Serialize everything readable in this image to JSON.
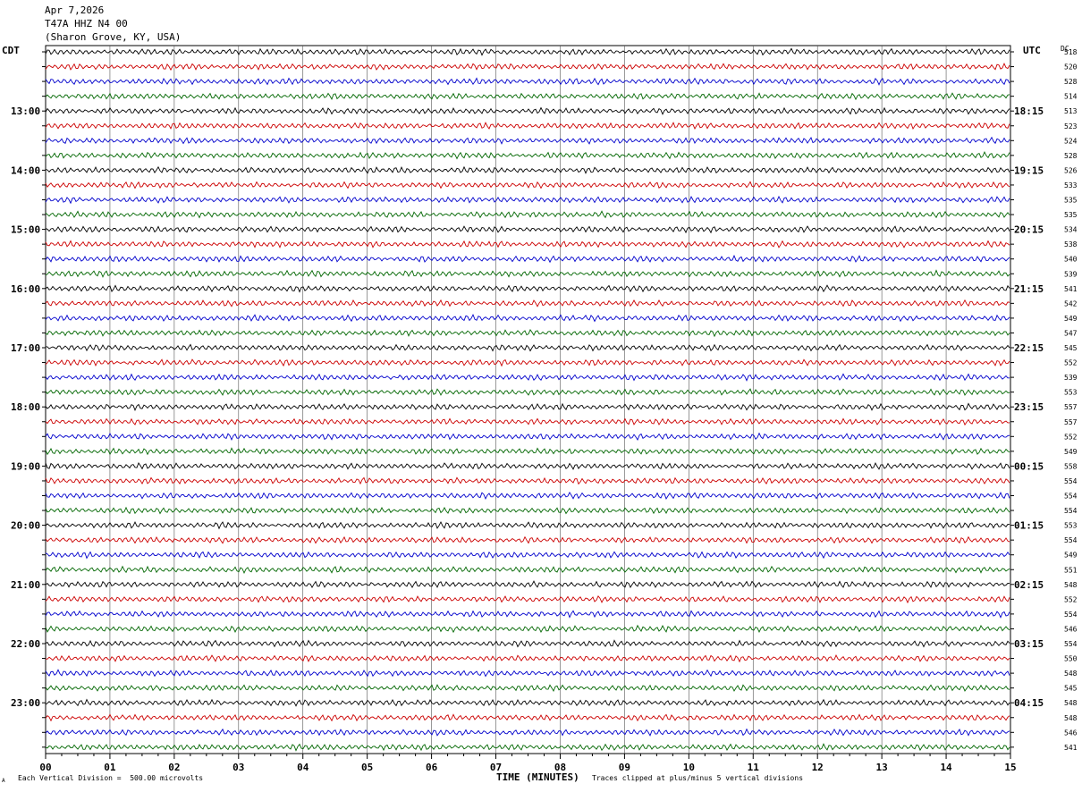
{
  "header": {
    "date": "Apr 7,2026",
    "station": "T47A HHZ N4 00",
    "location": "(Sharon Grove, KY, USA)"
  },
  "left_tz": "CDT",
  "right_tz": "UTC",
  "dc_label": "DC",
  "footer": {
    "scale": "Each Vertical Division =  500.00 microvolts",
    "clip": "Traces clipped at plus/minus 5 vertical divisions",
    "corner": "A"
  },
  "colors": {
    "trace_cycle": [
      "#000000",
      "#cc0000",
      "#0000cc",
      "#006600"
    ],
    "grid": "#000000"
  },
  "chart_data": {
    "type": "line",
    "title": "",
    "xlabel": "TIME (MINUTES)",
    "ylabel": "",
    "xlim": [
      0,
      15
    ],
    "x_ticks": [
      "00",
      "01",
      "02",
      "03",
      "04",
      "05",
      "06",
      "07",
      "08",
      "09",
      "10",
      "11",
      "12",
      "13",
      "14",
      "15"
    ],
    "grid": true,
    "left_hour_labels": [
      {
        "row": 4,
        "label": "13:00"
      },
      {
        "row": 8,
        "label": "14:00"
      },
      {
        "row": 12,
        "label": "15:00"
      },
      {
        "row": 16,
        "label": "16:00"
      },
      {
        "row": 20,
        "label": "17:00"
      },
      {
        "row": 24,
        "label": "18:00"
      },
      {
        "row": 28,
        "label": "19:00"
      },
      {
        "row": 32,
        "label": "20:00"
      },
      {
        "row": 36,
        "label": "21:00"
      },
      {
        "row": 40,
        "label": "22:00"
      },
      {
        "row": 44,
        "label": "23:00"
      }
    ],
    "right_hour_labels": [
      {
        "row": 4,
        "label": "18:15"
      },
      {
        "row": 8,
        "label": "19:15"
      },
      {
        "row": 12,
        "label": "20:15"
      },
      {
        "row": 16,
        "label": "21:15"
      },
      {
        "row": 20,
        "label": "22:15"
      },
      {
        "row": 24,
        "label": "23:15"
      },
      {
        "row": 28,
        "label": "00:15"
      },
      {
        "row": 32,
        "label": "01:15"
      },
      {
        "row": 36,
        "label": "02:15"
      },
      {
        "row": 40,
        "label": "03:15"
      },
      {
        "row": 44,
        "label": "04:15"
      }
    ],
    "dc_offsets": [
      "518",
      "520",
      "528",
      "514",
      "513",
      "523",
      "524",
      "528",
      "526",
      "533",
      "535",
      "535",
      "534",
      "538",
      "540",
      "539",
      "541",
      "542",
      "549",
      "547",
      "545",
      "552",
      "539",
      "553",
      "557",
      "557",
      "552",
      "549",
      "558",
      "554",
      "554",
      "554",
      "553",
      "554",
      "549",
      "551",
      "548",
      "552",
      "554",
      "546",
      "554",
      "550",
      "548",
      "545",
      "548",
      "548",
      "546",
      "541"
    ]
  }
}
